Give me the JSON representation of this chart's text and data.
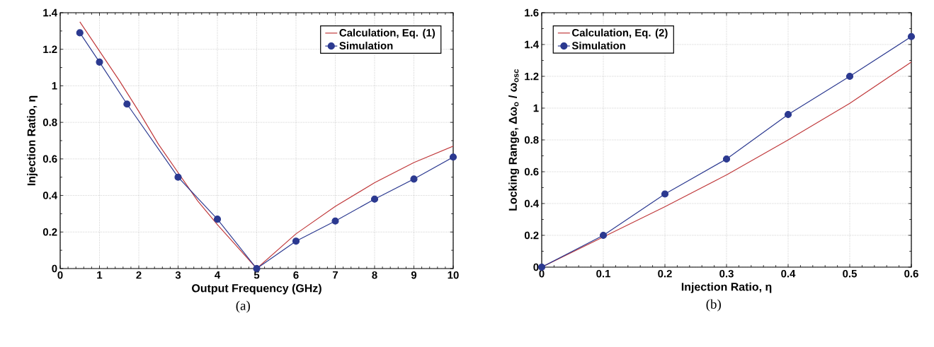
{
  "chart_data": [
    {
      "type": "line",
      "xlabel": "Output Frequency (GHz)",
      "ylabel": "Injection Ratio, η",
      "annotations": [
        "(a)"
      ],
      "xlim": [
        0,
        10
      ],
      "ylim": [
        0,
        1.4
      ],
      "xticks": [
        0,
        1,
        2,
        3,
        4,
        5,
        6,
        7,
        8,
        9,
        10
      ],
      "yticks": [
        0,
        0.2,
        0.4,
        0.6,
        0.8,
        1,
        1.2,
        1.4
      ],
      "grid": true,
      "legend": "top right",
      "series": [
        {
          "name": "Calculation, Eq. (1)",
          "color": "#c0393b",
          "marker": "none",
          "x": [
            0.5,
            1,
            1.5,
            2,
            2.5,
            3.5,
            4,
            4.5,
            5,
            6,
            7,
            8,
            9,
            10
          ],
          "values": [
            1.35,
            1.19,
            1.03,
            0.86,
            0.68,
            0.37,
            0.24,
            0.12,
            0,
            0.19,
            0.34,
            0.47,
            0.58,
            0.67
          ]
        },
        {
          "name": "Simulation",
          "color": "#2b3990",
          "marker": "circle",
          "x": [
            0.5,
            1,
            1.7,
            3,
            4,
            5,
            6,
            7,
            8,
            9,
            10
          ],
          "values": [
            1.29,
            1.13,
            0.9,
            0.5,
            0.27,
            0,
            0.15,
            0.26,
            0.38,
            0.49,
            0.61
          ]
        }
      ]
    },
    {
      "type": "line",
      "xlabel": "Injection Ratio, η",
      "ylabel": "Locking Range, Δω$_{o}$ / ω$_{osc}$",
      "annotations": [
        "(b)"
      ],
      "xlim": [
        0,
        0.6
      ],
      "ylim": [
        0,
        1.6
      ],
      "xticks": [
        0,
        0.1,
        0.2,
        0.3,
        0.4,
        0.5,
        0.6
      ],
      "yticks": [
        0,
        0.2,
        0.4,
        0.6,
        0.8,
        1,
        1.2,
        1.4,
        1.6
      ],
      "grid": true,
      "legend": "top left",
      "series": [
        {
          "name": "Calculation, Eq. (2)",
          "color": "#c0393b",
          "marker": "none",
          "x": [
            0,
            0.1,
            0.2,
            0.3,
            0.4,
            0.5,
            0.6
          ],
          "values": [
            0,
            0.19,
            0.38,
            0.58,
            0.8,
            1.03,
            1.29
          ]
        },
        {
          "name": "Simulation",
          "color": "#2b3990",
          "marker": "circle",
          "x": [
            0,
            0.1,
            0.2,
            0.3,
            0.4,
            0.5,
            0.6
          ],
          "values": [
            0,
            0.2,
            0.46,
            0.68,
            0.96,
            1.2,
            1.45
          ]
        }
      ]
    }
  ]
}
